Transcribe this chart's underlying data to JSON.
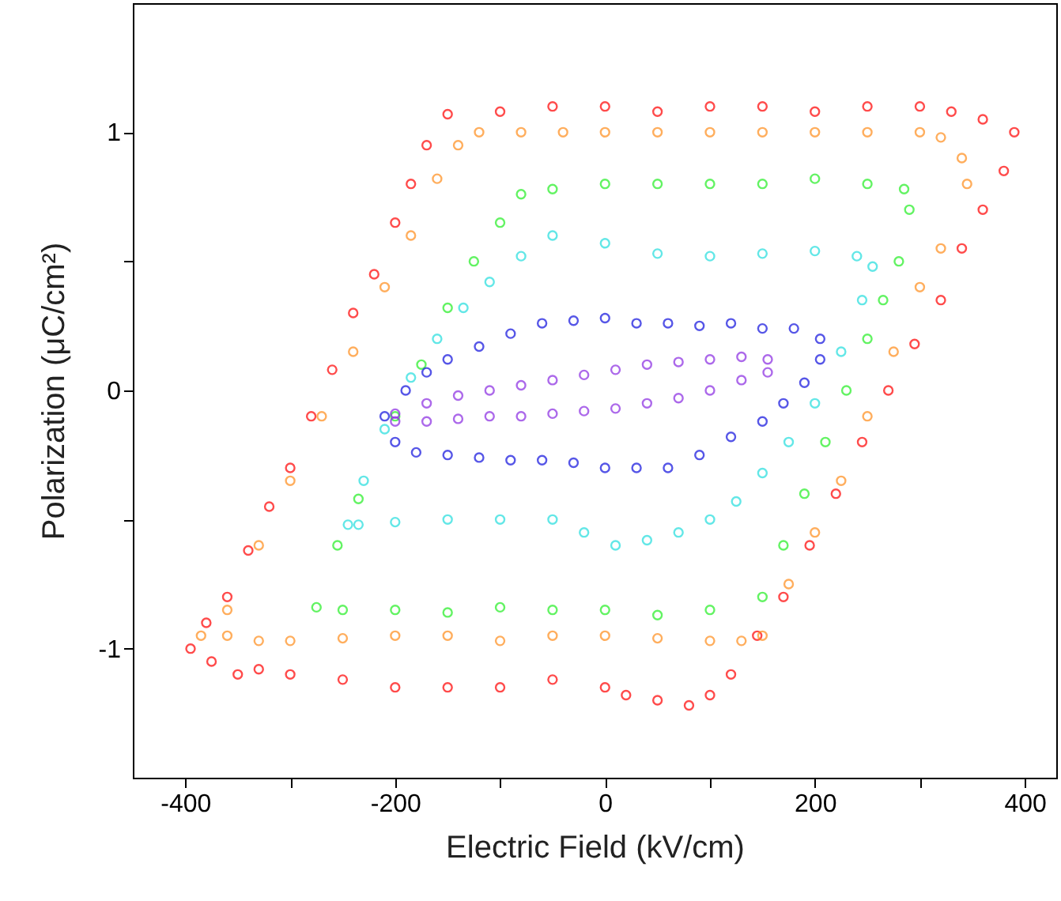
{
  "chart_data": {
    "type": "scatter",
    "xlabel": "Electric Field (kV/cm)",
    "ylabel": "Polarization (μC/cm²)",
    "xlim": [
      -450,
      430
    ],
    "ylim": [
      -1.5,
      1.5
    ],
    "xticks": [
      -400,
      {
        "value": -300,
        "label": null
      },
      -200,
      {
        "value": -100,
        "label": null
      },
      0,
      {
        "value": 100,
        "label": null
      },
      200,
      {
        "value": 300,
        "label": null
      },
      400
    ],
    "yticks": [
      -1,
      {
        "value": -0.5,
        "label": null
      },
      0,
      {
        "value": 0.5,
        "label": null
      },
      1
    ],
    "grid": false,
    "marker": "circle",
    "series": [
      {
        "color": "#ff0000",
        "x": [
          -395,
          -380,
          -360,
          -340,
          -320,
          -300,
          -280,
          -260,
          -240,
          -220,
          -200,
          -185,
          -170,
          -150,
          -100,
          -50,
          0,
          50,
          100,
          150,
          200,
          250,
          300,
          330,
          360,
          390,
          380,
          360,
          340,
          320,
          295,
          270,
          245,
          220,
          195,
          170,
          145,
          120,
          100,
          80,
          50,
          20,
          0,
          -50,
          -100,
          -150,
          -200,
          -250,
          -300,
          -330,
          -350,
          -375
        ],
        "values": [
          -1.0,
          -0.9,
          -0.8,
          -0.62,
          -0.45,
          -0.3,
          -0.1,
          0.08,
          0.3,
          0.45,
          0.65,
          0.8,
          0.95,
          1.07,
          1.08,
          1.1,
          1.1,
          1.08,
          1.1,
          1.1,
          1.08,
          1.1,
          1.1,
          1.08,
          1.05,
          1.0,
          0.85,
          0.7,
          0.55,
          0.35,
          0.18,
          0.0,
          -0.2,
          -0.4,
          -0.6,
          -0.8,
          -0.95,
          -1.1,
          -1.18,
          -1.22,
          -1.2,
          -1.18,
          -1.15,
          -1.12,
          -1.15,
          -1.15,
          -1.15,
          -1.12,
          -1.1,
          -1.08,
          -1.1,
          -1.05
        ]
      },
      {
        "color": "#ff8c1a",
        "x": [
          -385,
          -360,
          -330,
          -300,
          -270,
          -240,
          -210,
          -185,
          -160,
          -140,
          -120,
          -80,
          -40,
          0,
          50,
          100,
          150,
          200,
          250,
          300,
          320,
          340,
          345,
          320,
          300,
          275,
          250,
          225,
          200,
          175,
          150,
          130,
          100,
          50,
          0,
          -50,
          -100,
          -150,
          -200,
          -250,
          -300,
          -330,
          -360
        ],
        "values": [
          -0.95,
          -0.85,
          -0.6,
          -0.35,
          -0.1,
          0.15,
          0.4,
          0.6,
          0.82,
          0.95,
          1.0,
          1.0,
          1.0,
          1.0,
          1.0,
          1.0,
          1.0,
          1.0,
          1.0,
          1.0,
          0.98,
          0.9,
          0.8,
          0.55,
          0.4,
          0.15,
          -0.1,
          -0.35,
          -0.55,
          -0.75,
          -0.95,
          -0.97,
          -0.97,
          -0.96,
          -0.95,
          -0.95,
          -0.97,
          -0.95,
          -0.95,
          -0.96,
          -0.97,
          -0.97,
          -0.95
        ]
      },
      {
        "color": "#22ee22",
        "x": [
          -275,
          -255,
          -235,
          -200,
          -175,
          -150,
          -125,
          -100,
          -80,
          -50,
          0,
          50,
          100,
          150,
          200,
          250,
          285,
          290,
          280,
          265,
          250,
          230,
          210,
          190,
          170,
          150,
          100,
          50,
          0,
          -50,
          -100,
          -150,
          -200,
          -250
        ],
        "values": [
          -0.84,
          -0.6,
          -0.42,
          -0.1,
          0.1,
          0.32,
          0.5,
          0.65,
          0.76,
          0.78,
          0.8,
          0.8,
          0.8,
          0.8,
          0.82,
          0.8,
          0.78,
          0.7,
          0.5,
          0.35,
          0.2,
          0.0,
          -0.2,
          -0.4,
          -0.6,
          -0.8,
          -0.85,
          -0.87,
          -0.85,
          -0.85,
          -0.84,
          -0.86,
          -0.85,
          -0.85
        ]
      },
      {
        "color": "#22dddd",
        "x": [
          -245,
          -230,
          -210,
          -185,
          -160,
          -135,
          -110,
          -80,
          -50,
          0,
          50,
          100,
          150,
          200,
          240,
          255,
          245,
          225,
          200,
          175,
          150,
          125,
          100,
          70,
          40,
          10,
          -20,
          -50,
          -100,
          -150,
          -200,
          -235
        ],
        "values": [
          -0.52,
          -0.35,
          -0.15,
          0.05,
          0.2,
          0.32,
          0.42,
          0.52,
          0.6,
          0.57,
          0.53,
          0.52,
          0.53,
          0.54,
          0.52,
          0.48,
          0.35,
          0.15,
          -0.05,
          -0.2,
          -0.32,
          -0.43,
          -0.5,
          -0.55,
          -0.58,
          -0.6,
          -0.55,
          -0.5,
          -0.5,
          -0.5,
          -0.51,
          -0.52
        ]
      },
      {
        "color": "#1010dd",
        "x": [
          -210,
          -190,
          -170,
          -150,
          -120,
          -90,
          -60,
          -30,
          0,
          30,
          60,
          90,
          120,
          150,
          180,
          205,
          205,
          190,
          170,
          150,
          120,
          90,
          60,
          30,
          0,
          -30,
          -60,
          -90,
          -120,
          -150,
          -180,
          -200
        ],
        "values": [
          -0.1,
          0.0,
          0.07,
          0.12,
          0.17,
          0.22,
          0.26,
          0.27,
          0.28,
          0.26,
          0.26,
          0.25,
          0.26,
          0.24,
          0.24,
          0.2,
          0.12,
          0.03,
          -0.05,
          -0.12,
          -0.18,
          -0.25,
          -0.3,
          -0.3,
          -0.3,
          -0.28,
          -0.27,
          -0.27,
          -0.26,
          -0.25,
          -0.24,
          -0.2
        ]
      },
      {
        "color": "#8a2be2",
        "x": [
          -200,
          -170,
          -140,
          -110,
          -80,
          -50,
          -20,
          10,
          40,
          70,
          100,
          130,
          155,
          155,
          130,
          100,
          70,
          40,
          10,
          -20,
          -50,
          -80,
          -110,
          -140,
          -170,
          -200
        ],
        "values": [
          -0.09,
          -0.05,
          -0.02,
          0.0,
          0.02,
          0.04,
          0.06,
          0.08,
          0.1,
          0.11,
          0.12,
          0.13,
          0.12,
          0.07,
          0.04,
          0.0,
          -0.03,
          -0.05,
          -0.07,
          -0.08,
          -0.09,
          -0.1,
          -0.1,
          -0.11,
          -0.12,
          -0.12
        ]
      }
    ]
  }
}
